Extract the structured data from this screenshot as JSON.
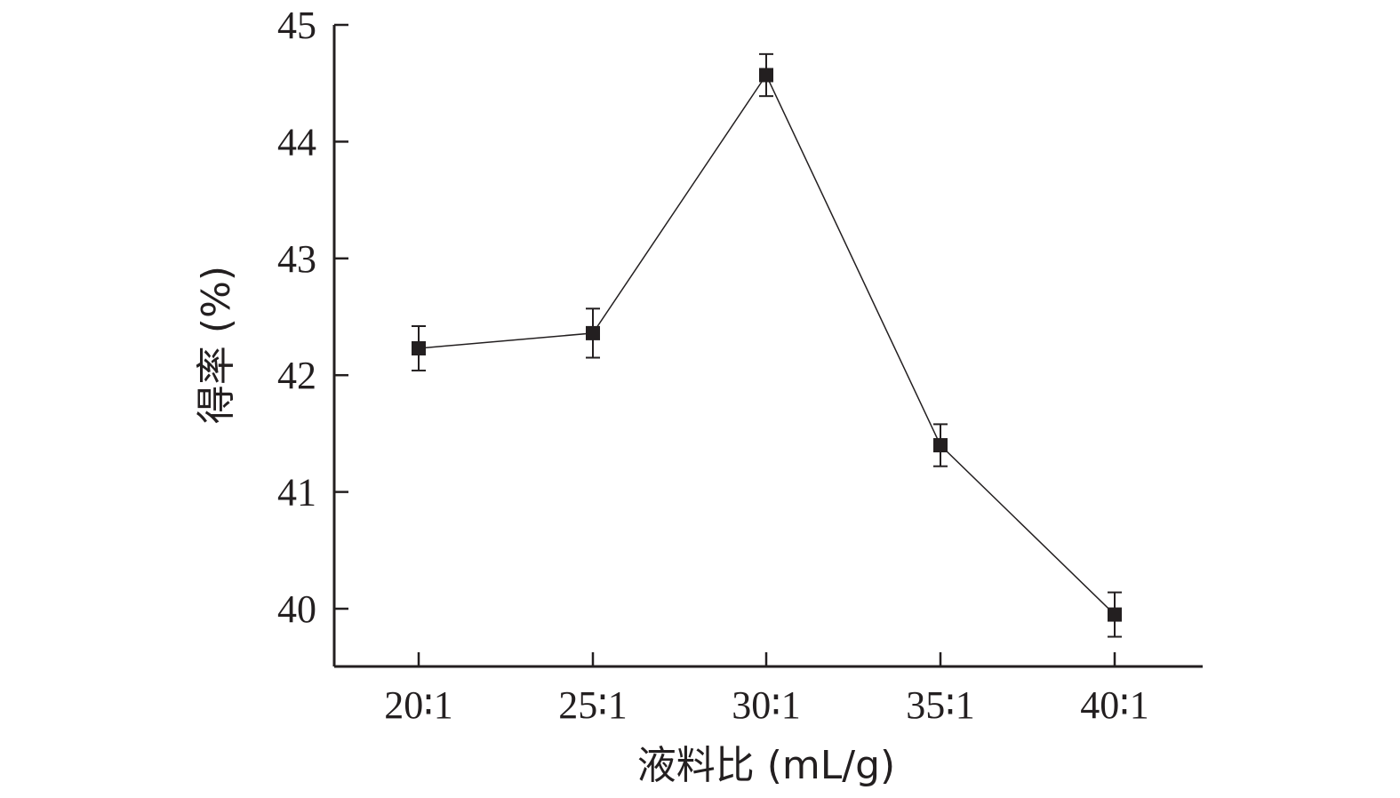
{
  "chart_data": {
    "type": "line",
    "title": "",
    "xlabel": "液料比 (mL/g)",
    "ylabel": "得率 (%)",
    "categories": [
      "20∶1",
      "25∶1",
      "30∶1",
      "35∶1",
      "40∶1"
    ],
    "y_ticks": [
      "40",
      "41",
      "42",
      "43",
      "44",
      "45"
    ],
    "ylim": [
      39.5,
      45
    ],
    "grid": false,
    "legend": "none",
    "series": [
      {
        "values": [
          42.23,
          42.36,
          44.57,
          41.4,
          39.95
        ],
        "errors": [
          0.19,
          0.21,
          0.18,
          0.18,
          0.19
        ],
        "marker": "square",
        "color": "#231f20"
      }
    ]
  }
}
